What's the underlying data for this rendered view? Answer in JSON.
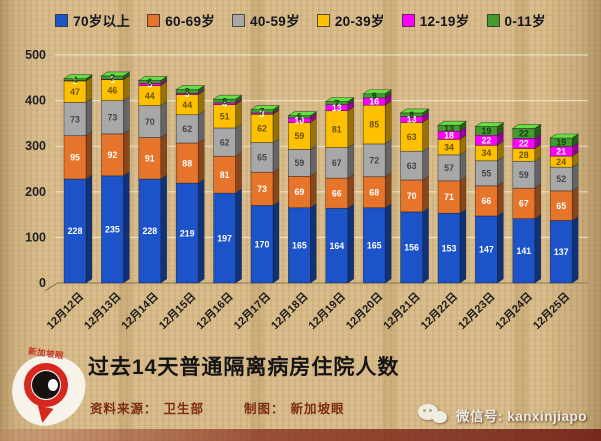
{
  "chart_data": {
    "type": "bar",
    "stacked": true,
    "effect_3d": true,
    "title": "过去14天普通隔离病房住院人数",
    "grid": true,
    "legend_position": "top",
    "ylim": [
      0,
      500
    ],
    "y_ticks": [
      0,
      100,
      200,
      300,
      400,
      500
    ],
    "categories": [
      "12月12日",
      "12月13日",
      "12月14日",
      "12月15日",
      "12月16日",
      "12月17日",
      "12月18日",
      "12月19日",
      "12月20日",
      "12月21日",
      "12月22日",
      "12月23日",
      "12月24日",
      "12月25日"
    ],
    "series": [
      {
        "name": "70岁以上",
        "color": "#1d53c8",
        "label_color": "#ffffff",
        "values": [
          228,
          235,
          228,
          219,
          197,
          170,
          165,
          164,
          165,
          156,
          153,
          147,
          141,
          137
        ]
      },
      {
        "name": "60-69岁",
        "color": "#e6752b",
        "label_color": "#ffffff",
        "values": [
          95,
          92,
          91,
          88,
          81,
          73,
          69,
          66,
          68,
          70,
          71,
          66,
          67,
          65
        ]
      },
      {
        "name": "40-59岁",
        "color": "#a8a8a8",
        "label_color": "#444444",
        "values": [
          73,
          73,
          70,
          62,
          62,
          65,
          59,
          67,
          72,
          63,
          57,
          55,
          59,
          52
        ]
      },
      {
        "name": "20-39岁",
        "color": "#ffc000",
        "label_color": "#6b5200",
        "values": [
          47,
          46,
          44,
          44,
          51,
          62,
          59,
          81,
          85,
          63,
          34,
          34,
          28,
          24
        ]
      },
      {
        "name": "12-19岁",
        "color": "#ff00ff",
        "label_color": "#ffffff",
        "values": [
          1,
          1,
          5,
          3,
          4,
          3,
          10,
          13,
          16,
          13,
          18,
          22,
          22,
          21
        ]
      },
      {
        "name": "0-11岁",
        "color": "#449a2e",
        "label_color": "#163c0e",
        "values": [
          4,
          7,
          6,
          8,
          8,
          7,
          5,
          7,
          9,
          8,
          13,
          19,
          22,
          19
        ]
      }
    ]
  },
  "footer": {
    "source_label": "资料来源：",
    "source": "卫生部",
    "credit_label": "制图：",
    "credit": "新加坡眼",
    "wechat": "微信号: kanxinjiapo"
  },
  "logo": {
    "brand": "新加坡眼"
  }
}
